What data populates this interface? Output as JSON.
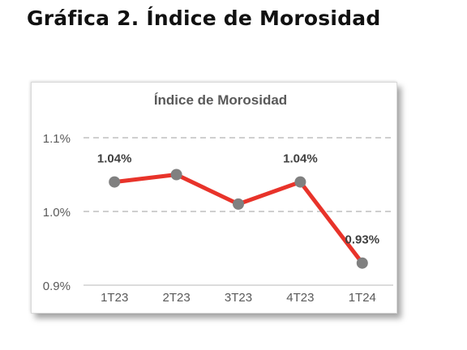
{
  "page": {
    "heading": "Gráfica 2. Índice de Morosidad"
  },
  "chart_data": {
    "type": "line",
    "title": "Índice de Morosidad",
    "categories": [
      "1T23",
      "2T23",
      "3T23",
      "4T23",
      "1T24"
    ],
    "series": [
      {
        "values": [
          1.04,
          1.05,
          1.01,
          1.04,
          0.93
        ]
      }
    ],
    "data_labels": [
      "1.04%",
      "",
      "",
      "1.04%",
      "0.93%"
    ],
    "y_ticks": [
      0.9,
      1.0,
      1.1
    ],
    "y_tick_labels": [
      "0.9%",
      "1.0%",
      "1.1%"
    ],
    "ylim": [
      0.9,
      1.1
    ],
    "xlabel": "",
    "ylabel": "",
    "grid": true,
    "legend": "none",
    "colors": {
      "line": "#e8332a",
      "marker": "#808080",
      "grid": "#bfbfbf",
      "text": "#595959",
      "label": "#404040"
    }
  }
}
